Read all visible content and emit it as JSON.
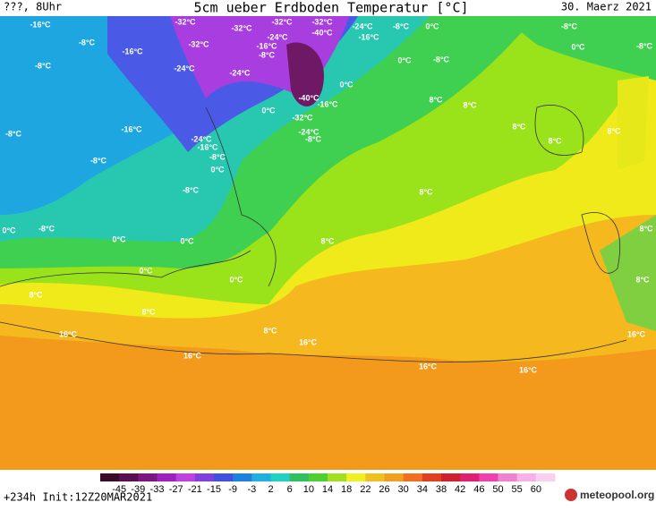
{
  "header": {
    "left": "???, 8Uhr",
    "title": "5cm ueber Erdboden Temperatur [°C]",
    "date": "30. Maerz 2021"
  },
  "map": {
    "labels": [
      "-16°C",
      "-8°C",
      "-16°C",
      "-8°C",
      "-32°C",
      "-32°C",
      "-32°C",
      "-24°C",
      "-32°C",
      "-40°C",
      "-24°C",
      "-16°C",
      "-8°C",
      "0°C",
      "-8°C",
      "0°C",
      "-8°C",
      "-32°C",
      "-16°C",
      "-8°C",
      "-24°C",
      "-24°C",
      "0°C",
      "-8°C",
      "0°C",
      "-8°C",
      "-16°C",
      "-40°C",
      "-16°C",
      "0°C",
      "-32°C",
      "8°C",
      "8°C",
      "-24°C",
      "-24°C",
      "-8°C",
      "-16°C",
      "-8°C",
      "0°C",
      "-8°C",
      "8°C",
      "8°C",
      "8°C",
      "-8°C",
      "8°C",
      "0°C",
      "-8°C",
      "0°C",
      "0°C",
      "8°C",
      "8°C",
      "0°C",
      "0°C",
      "8°C",
      "8°C",
      "8°C",
      "8°C",
      "16°C",
      "16°C",
      "16°C",
      "16°C",
      "16°C",
      "16°C"
    ]
  },
  "colorbar": {
    "labels": [
      "-45",
      "-39",
      "-33",
      "-27",
      "-21",
      "-15",
      "-9",
      "-3",
      "2",
      "6",
      "10",
      "14",
      "18",
      "22",
      "26",
      "30",
      "34",
      "38",
      "42",
      "46",
      "50",
      "55",
      "60"
    ]
  },
  "footer": {
    "run": "+234h Init:12Z20MAR2021",
    "brand": "meteopool.org"
  }
}
